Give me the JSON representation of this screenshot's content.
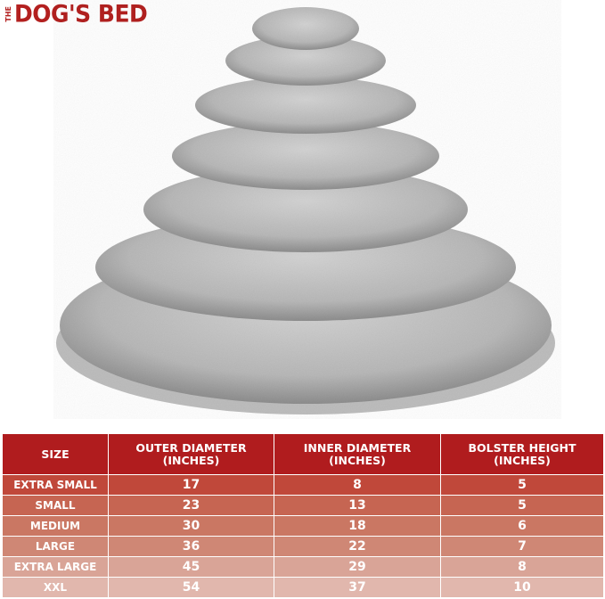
{
  "brand": {
    "the": "THE",
    "name": "DOG'S BED",
    "color": "#b3201f"
  },
  "table": {
    "headers": [
      {
        "line1": "SIZE",
        "line2": ""
      },
      {
        "line1": "OUTER DIAMETER",
        "line2": "(INCHES)"
      },
      {
        "line1": "INNER DIAMETER",
        "line2": "(INCHES)"
      },
      {
        "line1": "BOLSTER HEIGHT",
        "line2": "(INCHES)"
      }
    ],
    "header_color": "#b01c1e",
    "rows": [
      {
        "size": "EXTRA SMALL",
        "outer": "17",
        "inner": "8",
        "bolster": "5",
        "color": "#c0483a"
      },
      {
        "size": "SMALL",
        "outer": "23",
        "inner": "13",
        "bolster": "5",
        "color": "#c66552"
      },
      {
        "size": "MEDIUM",
        "outer": "30",
        "inner": "18",
        "bolster": "6",
        "color": "#ca7763"
      },
      {
        "size": "LARGE",
        "outer": "36",
        "inner": "22",
        "bolster": "7",
        "color": "#cf8775"
      },
      {
        "size": "EXTRA LARGE",
        "outer": "45",
        "inner": "29",
        "bolster": "8",
        "color": "#d9a497"
      },
      {
        "size": "XXL",
        "outer": "54",
        "inner": "37",
        "bolster": "10",
        "color": "#e1b7ad"
      }
    ]
  }
}
